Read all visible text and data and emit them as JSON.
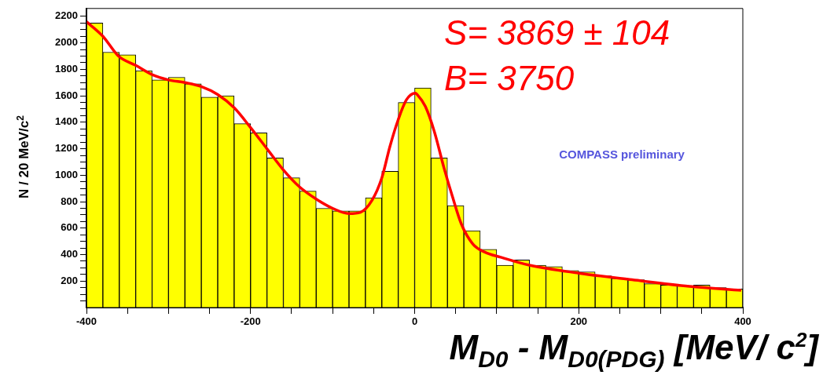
{
  "chart_data": {
    "type": "histogram",
    "ylabel": "N / 20 MeV/c$^{2}$",
    "xlabel": "M$_{D0}$ -  M$_{D0(PDG)}$  [MeV/ c$^{2}$]",
    "annotations": [
      "S= 3869 ± 104",
      "B= 3750",
      "COMPASS preliminary"
    ],
    "bins": [
      -400,
      -380,
      -360,
      -340,
      -320,
      -300,
      -280,
      -260,
      -240,
      -220,
      -200,
      -180,
      -160,
      -140,
      -120,
      -100,
      -80,
      -60,
      -40,
      -20,
      0,
      20,
      40,
      60,
      80,
      100,
      120,
      140,
      160,
      180,
      200,
      220,
      240,
      260,
      280,
      300,
      320,
      340,
      360,
      380,
      400
    ],
    "values": [
      2150,
      1930,
      1910,
      1790,
      1720,
      1740,
      1690,
      1590,
      1600,
      1390,
      1320,
      1130,
      980,
      880,
      750,
      730,
      730,
      830,
      1030,
      1550,
      1660,
      1130,
      770,
      580,
      440,
      320,
      360,
      320,
      310,
      280,
      270,
      240,
      220,
      210,
      180,
      170,
      165,
      170,
      150,
      140
    ],
    "color": "#ffff00",
    "series": [
      {
        "type": "line",
        "color": "#ff0000",
        "x": [
          -400,
          -380,
          -361,
          -340,
          -320,
          -300,
          -280,
          -260,
          -240,
          -220,
          -200,
          -180,
          -160,
          -140,
          -120,
          -100,
          -80,
          -66,
          -52,
          -40,
          -30,
          -20,
          -10,
          1,
          3,
          13,
          24,
          36,
          46,
          57,
          71,
          85,
          105,
          140,
          200,
          265,
          335,
          398
        ],
        "values": [
          2160,
          2050,
          1900,
          1830,
          1760,
          1720,
          1700,
          1670,
          1610,
          1510,
          1360,
          1200,
          1040,
          910,
          820,
          750,
          710,
          720,
          810,
          980,
          1220,
          1420,
          1570,
          1620,
          1610,
          1520,
          1330,
          1050,
          840,
          630,
          480,
          420,
          380,
          320,
          260,
          210,
          160,
          130
        ]
      }
    ],
    "xlim": [
      -400,
      400
    ],
    "xticks": [
      -400,
      {
        "value": -350,
        "label": null
      },
      {
        "value": -300,
        "label": null
      },
      {
        "value": -250,
        "label": null
      },
      -200,
      {
        "value": -150,
        "label": null
      },
      {
        "value": -100,
        "label": null
      },
      {
        "value": -50,
        "label": null
      },
      0,
      {
        "value": 50,
        "label": null
      },
      {
        "value": 100,
        "label": null
      },
      {
        "value": 150,
        "label": null
      },
      200,
      {
        "value": 250,
        "label": null
      },
      {
        "value": 300,
        "label": null
      },
      {
        "value": 350,
        "label": null
      },
      400
    ],
    "ylim": [
      0,
      2260
    ],
    "yticks": [
      {
        "value": 50,
        "label": null
      },
      {
        "value": 100,
        "label": null
      },
      {
        "value": 150,
        "label": null
      },
      200,
      {
        "value": 250,
        "label": null
      },
      {
        "value": 300,
        "label": null
      },
      {
        "value": 350,
        "label": null
      },
      400,
      {
        "value": 450,
        "label": null
      },
      {
        "value": 500,
        "label": null
      },
      {
        "value": 550,
        "label": null
      },
      600,
      {
        "value": 650,
        "label": null
      },
      {
        "value": 700,
        "label": null
      },
      {
        "value": 750,
        "label": null
      },
      800,
      {
        "value": 850,
        "label": null
      },
      {
        "value": 900,
        "label": null
      },
      {
        "value": 950,
        "label": null
      },
      1000,
      {
        "value": 1050,
        "label": null
      },
      {
        "value": 1100,
        "label": null
      },
      {
        "value": 1150,
        "label": null
      },
      1200,
      {
        "value": 1250,
        "label": null
      },
      {
        "value": 1300,
        "label": null
      },
      {
        "value": 1350,
        "label": null
      },
      1400,
      {
        "value": 1450,
        "label": null
      },
      {
        "value": 1500,
        "label": null
      },
      {
        "value": 1550,
        "label": null
      },
      1600,
      {
        "value": 1650,
        "label": null
      },
      {
        "value": 1700,
        "label": null
      },
      {
        "value": 1750,
        "label": null
      },
      1800,
      {
        "value": 1850,
        "label": null
      },
      {
        "value": 1900,
        "label": null
      },
      {
        "value": 1950,
        "label": null
      },
      2000,
      {
        "value": 2050,
        "label": null
      },
      {
        "value": 2100,
        "label": null
      },
      {
        "value": 2150,
        "label": null
      },
      2200
    ],
    "grid": false,
    "legend": false
  }
}
